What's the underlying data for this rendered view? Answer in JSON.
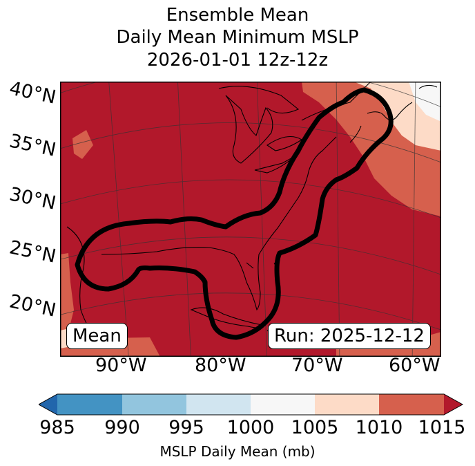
{
  "title": {
    "line1": "Ensemble Mean",
    "line2": "Daily Mean Minimum MSLP",
    "line3": "2026-01-01 12z-12z"
  },
  "map": {
    "lat_labels": [
      "40°N",
      "35°N",
      "30°N",
      "25°N",
      "20°N"
    ],
    "lon_labels": [
      "90°W",
      "80°W",
      "70°W",
      "60°W"
    ],
    "badge_left": "Mean",
    "badge_right": "Run: 2025-12-12",
    "field_colors": {
      "1010_1015": "#b2182b",
      "1005_1010": "#d6604d",
      "1000_1005": "#fddbc7",
      "995_1000": "#f7f7f7"
    }
  },
  "colorbar": {
    "ticks": [
      "985",
      "990",
      "995",
      "1000",
      "1005",
      "1010",
      "1015"
    ],
    "label": "MSLP Daily Mean (mb)",
    "colors": [
      "#2166ac",
      "#4393c3",
      "#92c5de",
      "#d1e5f0",
      "#f7f7f7",
      "#fddbc7",
      "#d6604d",
      "#b2182b"
    ]
  }
}
